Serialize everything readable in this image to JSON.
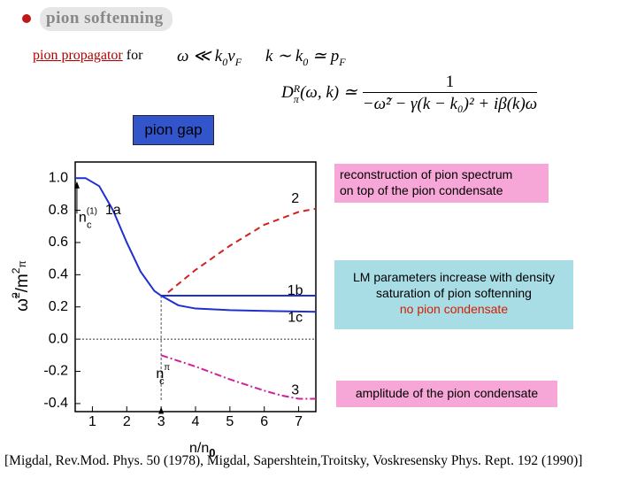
{
  "header": {
    "title": "pion softenning"
  },
  "propagator": {
    "link": "pion propagator",
    "for": "for",
    "cond1": [
      "ω ≪ k",
      "0",
      "v",
      "F"
    ],
    "cond2": [
      "k ∼ k",
      "0",
      " ≃ p",
      "F"
    ],
    "formula": {
      "lhs": "D",
      "lhs_sup": "R",
      "lhs_sub": "π",
      "lhs_rest": "(ω, k) ≃",
      "num": "1",
      "den": "−ω̃² − γ(k − k₀)² + iβ(k)ω"
    }
  },
  "gap_label": "pion gap",
  "boxes": [
    {
      "lines": [
        "reconstruction of pion spectrum",
        "on top of the pion condensate"
      ]
    },
    {
      "lines": [
        "LM parameters increase with density",
        "saturation of pion softenning",
        "no pion condensate"
      ]
    },
    {
      "lines": [
        "amplitude of the pion condensate"
      ]
    }
  ],
  "citation": "[Migdal, Rev.Mod. Phys. 50 (1978), Migdal, Sapershtein,Troitsky, Voskresensky Phys. Rept. 192 (1990)]",
  "chart_data": {
    "type": "line",
    "x_label": [
      "n/n",
      "0"
    ],
    "y_label": [
      "ω̃",
      "2",
      "/m",
      "2",
      "π"
    ],
    "xlim": [
      0.5,
      7.5
    ],
    "ylim": [
      -0.45,
      1.1
    ],
    "xticks": [
      1,
      2,
      3,
      4,
      5,
      6,
      7
    ],
    "yticks": [
      {
        "value": 1.0,
        "label": "1.0"
      },
      {
        "value": 0.8,
        "label": "0.8"
      },
      {
        "value": 0.6,
        "label": "0.6"
      },
      {
        "value": 0.4,
        "label": "0.4"
      },
      {
        "value": 0.2,
        "label": "0.2"
      },
      {
        "value": 0,
        "label": "0.0"
      },
      {
        "value": -0.2,
        "label": "-0.2"
      },
      {
        "value": -0.4,
        "label": "-0.4"
      }
    ],
    "series": [
      {
        "name": "1a",
        "color": "#1f2fd0",
        "dash": "solid",
        "x": [
          0.5,
          0.8,
          1.2,
          1.6,
          2.0,
          2.4,
          2.8,
          3.0
        ],
        "values": [
          1.0,
          1.0,
          0.95,
          0.8,
          0.6,
          0.42,
          0.3,
          0.27
        ]
      },
      {
        "name": "1b",
        "color": "#1f2fd0",
        "dash": "solid",
        "x": [
          3.0,
          7.5
        ],
        "values": [
          0.27,
          0.27
        ]
      },
      {
        "name": "1c",
        "color": "#1f2fd0",
        "dash": "solid",
        "x": [
          3.0,
          3.5,
          4.0,
          5.0,
          6.0,
          7.5
        ],
        "values": [
          0.27,
          0.21,
          0.19,
          0.18,
          0.175,
          0.17
        ]
      },
      {
        "name": "2",
        "color": "#d42020",
        "dash": "dashed",
        "x": [
          3.2,
          4.0,
          5.0,
          6.0,
          7.0,
          7.5
        ],
        "values": [
          0.29,
          0.43,
          0.58,
          0.71,
          0.79,
          0.81
        ]
      },
      {
        "name": "3",
        "color": "#d0209a",
        "dash": "dashdot",
        "x": [
          3.0,
          4.0,
          5.0,
          6.0,
          6.5,
          7.0,
          7.5
        ],
        "values": [
          -0.1,
          -0.17,
          -0.25,
          -0.32,
          -0.35,
          -0.37,
          -0.37
        ]
      }
    ],
    "annotations": [
      {
        "main": "n",
        "sub": "c",
        "sup": "(1)"
      },
      {
        "main": "n",
        "sub": "c",
        "sup": "π"
      }
    ]
  }
}
